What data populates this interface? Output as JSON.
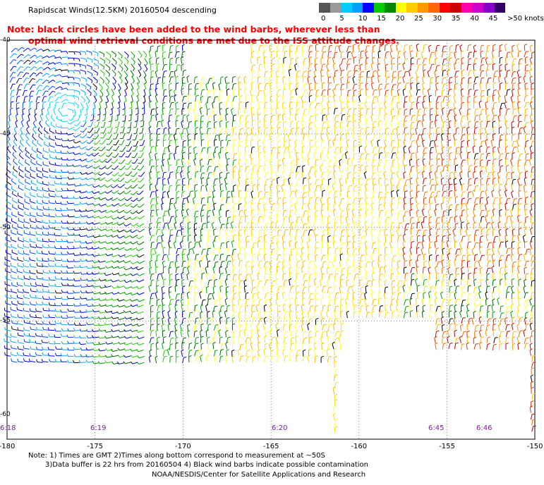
{
  "title": "Rapidscat Winds(12.5KM) 20160504 descending",
  "note": {
    "line1": "Note: black circles have been added to the wind barbs, wherever less than",
    "line2": "optimal wind retrieval conditions are met due to the ISS attitude changes."
  },
  "legend": {
    "labels": [
      "0",
      "5",
      "10",
      "15",
      "20",
      "25",
      "30",
      "35",
      "40",
      "45",
      ">50 knots"
    ],
    "colors": [
      "#555555",
      "#999999",
      "#00ccff",
      "#00a0ff",
      "#0000ff",
      "#00cc00",
      "#008800",
      "#ffff00",
      "#ffcc00",
      "#ff9900",
      "#ff6600",
      "#ff0000",
      "#cc0000",
      "#ff00aa",
      "#cc00cc",
      "#8800cc",
      "#330066"
    ]
  },
  "axes": {
    "x_ticks": [
      "-180",
      "-175",
      "-170",
      "-165",
      "-160",
      "-155",
      "-150"
    ],
    "y_ticks": [
      "-40",
      "-45",
      "-50",
      "-55",
      "-60"
    ]
  },
  "time_labels": [
    "6:18",
    "6:19",
    "6:20",
    "6:45",
    "6:46"
  ],
  "footer": {
    "line1": "Note: 1) Times are GMT 2)Times along bottom correspond to measurement at ~50S",
    "line2": "3)Data buffer is 22 hrs from 20160504 4) Black wind barbs indicate possible contamination",
    "line3": "NOAA/NESDIS/Center for Satellite Applications and Research"
  }
}
